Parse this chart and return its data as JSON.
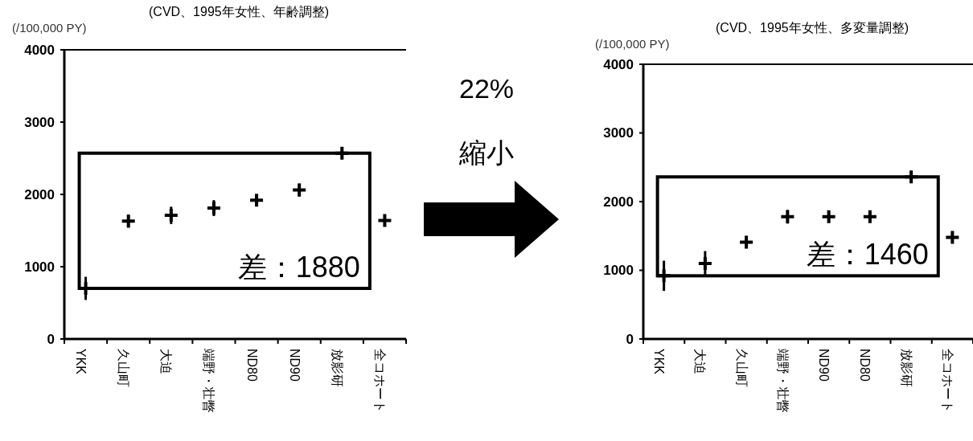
{
  "chart_data": [
    {
      "type": "scatter",
      "title": "(CVD、1995年女性、年齢調整)",
      "ylabel": "(/100,000 PY)",
      "categories": [
        "YKK",
        "久山町",
        "大迫",
        "端野・壮瞥",
        "ND80",
        "ND90",
        "放影研",
        "全コホート"
      ],
      "marker": "cross",
      "ylim": [
        0,
        4000
      ],
      "yticks": [
        0,
        1000,
        2000,
        3000,
        4000
      ],
      "series": [
        {
          "color": "#000000",
          "values": [
            700,
            1630,
            1710,
            1810,
            1920,
            2060,
            2570,
            1640
          ],
          "errors": [
            160,
            90,
            120,
            110,
            60,
            90,
            80,
            70
          ]
        }
      ],
      "annotations": [
        "差：1880"
      ]
    },
    {
      "type": "other",
      "annotations": [
        "22%",
        "縮小"
      ]
    },
    {
      "type": "scatter",
      "title": "(CVD、1995年女性、多変量調整)",
      "ylabel": "(/100,000 PY)",
      "categories": [
        "YKK",
        "大迫",
        "久山町",
        "端野・壮瞥",
        "ND90",
        "ND80",
        "放影研",
        "全コホート"
      ],
      "marker": "cross",
      "ylim": [
        0,
        4000
      ],
      "yticks": [
        0,
        1000,
        2000,
        3000,
        4000
      ],
      "series": [
        {
          "color": "#000000",
          "values": [
            920,
            1100,
            1410,
            1780,
            1780,
            1780,
            2360,
            1480
          ],
          "errors": [
            220,
            180,
            90,
            100,
            80,
            50,
            85,
            50
          ]
        }
      ],
      "annotations": [
        "差：1460"
      ]
    }
  ]
}
